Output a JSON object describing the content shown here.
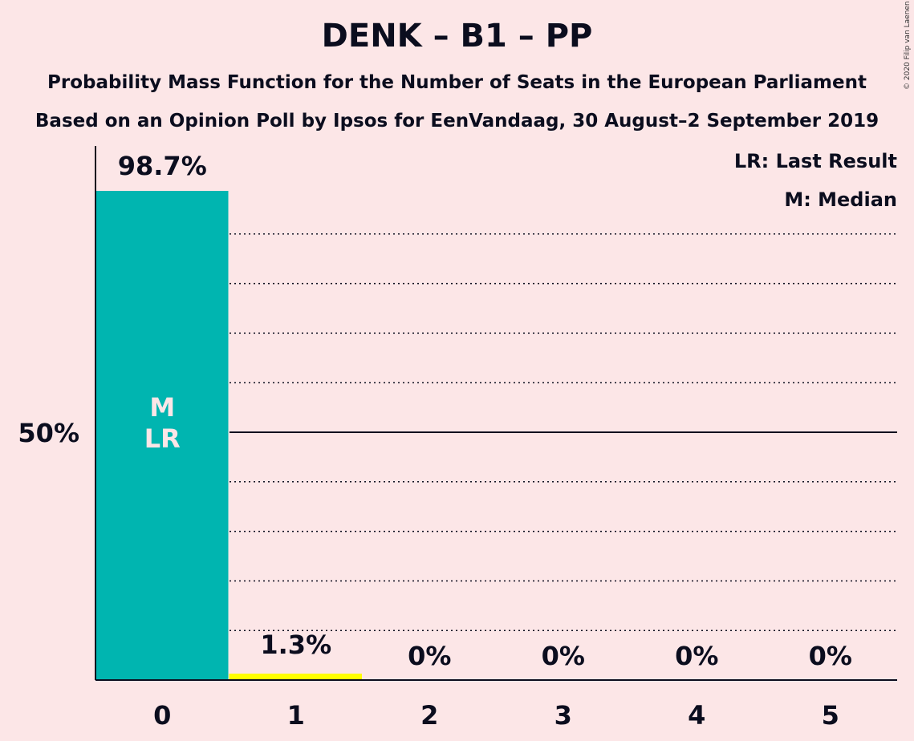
{
  "title": "DENK – B1 – PP",
  "subtitle1": "Probability Mass Function for the Number of Seats in the European Parliament",
  "subtitle2": "Based on an Opinion Poll by Ipsos for EenVandaag, 30 August–2 September 2019",
  "copyright": "© 2020 Filip van Laenen",
  "legend": {
    "last_result": "LR: Last Result",
    "median": "M: Median"
  },
  "colors": {
    "background": "#FCE6E7",
    "bar_primary": "#00B5B0",
    "bar_secondary": "#FFFF00",
    "text": "#0B0D1E"
  },
  "chart_data": {
    "type": "bar",
    "categories": [
      "0",
      "1",
      "2",
      "3",
      "4",
      "5"
    ],
    "values": [
      98.7,
      1.3,
      0,
      0,
      0,
      0
    ],
    "value_labels": [
      "98.7%",
      "1.3%",
      "0%",
      "0%",
      "0%",
      "0%"
    ],
    "ylim": [
      0,
      100
    ],
    "y_tick_label": "50%",
    "y_tick_value": 50,
    "median_seat": "0",
    "last_result_seat": "0",
    "bar_marks": [
      "M",
      "LR"
    ],
    "gridlines": "dotted every 10%, solid at 50%"
  }
}
